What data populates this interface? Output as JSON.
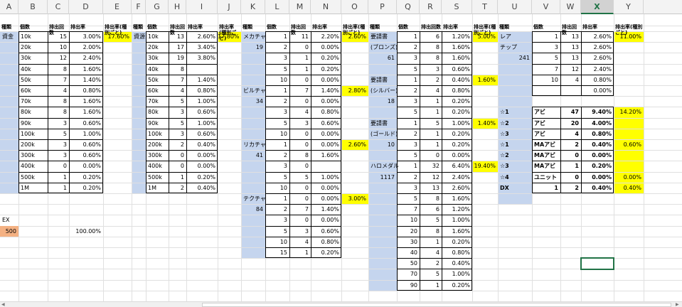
{
  "columns": [
    "A",
    "B",
    "C",
    "D",
    "E",
    "F",
    "G",
    "H",
    "I",
    "J",
    "K",
    "L",
    "M",
    "N",
    "O",
    "P",
    "Q",
    "R",
    "S",
    "T",
    "U",
    "V",
    "W",
    "X",
    "Y"
  ],
  "selected_column": "X",
  "headers": {
    "type": "種類",
    "count": "個数",
    "times": "排出回数",
    "rate": "排出率",
    "rate2": "排出率(種別ごと)"
  },
  "block1": {
    "category": "資金",
    "group_rate": "17.60%",
    "rows": [
      [
        "10k",
        "15",
        "3.00%"
      ],
      [
        "20k",
        "10",
        "2.00%"
      ],
      [
        "30k",
        "12",
        "2.40%"
      ],
      [
        "40k",
        "8",
        "1.60%"
      ],
      [
        "50k",
        "7",
        "1.40%"
      ],
      [
        "60k",
        "4",
        "0.80%"
      ],
      [
        "70k",
        "8",
        "1.60%"
      ],
      [
        "80k",
        "8",
        "1.60%"
      ],
      [
        "90k",
        "3",
        "0.60%"
      ],
      [
        "100k",
        "5",
        "1.00%"
      ],
      [
        "200k",
        "3",
        "0.60%"
      ],
      [
        "300k",
        "3",
        "0.60%"
      ],
      [
        "400k",
        "0",
        "0.00%"
      ],
      [
        "500k",
        "1",
        "0.20%"
      ],
      [
        "1M",
        "1",
        "0.20%"
      ]
    ]
  },
  "block2": {
    "category": "資源",
    "group_rate": "17.80%",
    "rows": [
      [
        "10k",
        "13",
        "2.60%"
      ],
      [
        "20k",
        "17",
        "3.40%"
      ],
      [
        "30k",
        "19",
        "3.80%"
      ],
      [
        "40k",
        "8",
        ""
      ],
      [
        "50k",
        "7",
        "1.40%"
      ],
      [
        "60k",
        "4",
        "0.80%"
      ],
      [
        "70k",
        "5",
        "1.00%"
      ],
      [
        "80k",
        "3",
        "0.60%"
      ],
      [
        "90k",
        "5",
        "1.00%"
      ],
      [
        "100k",
        "3",
        "0.60%"
      ],
      [
        "200k",
        "2",
        "0.40%"
      ],
      [
        "300k",
        "0",
        "0.00%"
      ],
      [
        "400k",
        "0",
        "0.00%"
      ],
      [
        "500k",
        "1",
        "0.20%"
      ],
      [
        "1M",
        "2",
        "0.40%"
      ]
    ]
  },
  "block3": {
    "groups": [
      {
        "name": "メカチャ",
        "total": "19",
        "rate": "2.60%",
        "rows": [
          [
            "1",
            "11",
            "2.20%"
          ],
          [
            "2",
            "0",
            "0.00%"
          ],
          [
            "3",
            "1",
            "0.20%"
          ],
          [
            "5",
            "1",
            "0.20%"
          ],
          [
            "10",
            "0",
            "0.00%"
          ]
        ]
      },
      {
        "name": "ビルチャ",
        "total": "34",
        "rate": "2.80%",
        "rows": [
          [
            "1",
            "7",
            "1.40%"
          ],
          [
            "2",
            "0",
            "0.00%"
          ],
          [
            "3",
            "4",
            "0.80%"
          ],
          [
            "5",
            "3",
            "0.60%"
          ],
          [
            "10",
            "0",
            "0.00%"
          ]
        ]
      },
      {
        "name": "リカチャ",
        "total": "41",
        "rate": "2.60%",
        "rows": [
          [
            "1",
            "0",
            "0.00%"
          ],
          [
            "2",
            "8",
            "1.60%"
          ],
          [
            "3",
            "0",
            ""
          ],
          [
            "5",
            "5",
            "1.00%"
          ],
          [
            "10",
            "0",
            "0.00%"
          ]
        ]
      },
      {
        "name": "テクチャ",
        "total": "84",
        "rate": "3.00%",
        "rows": [
          [
            "1",
            "0",
            "0.00%"
          ],
          [
            "2",
            "7",
            "1.40%"
          ],
          [
            "3",
            "0",
            "0.00%"
          ],
          [
            "5",
            "3",
            "0.60%"
          ],
          [
            "10",
            "4",
            "0.80%"
          ],
          [
            "15",
            "1",
            "0.20%"
          ]
        ]
      }
    ]
  },
  "block4": {
    "groups": [
      {
        "name1": "要請書",
        "name2": "(ブロンズ)",
        "total": "61",
        "rate": "5.00%",
        "rows": [
          [
            "1",
            "6",
            "1.20%"
          ],
          [
            "2",
            "8",
            "1.60%"
          ],
          [
            "3",
            "8",
            "1.60%"
          ],
          [
            "5",
            "3",
            "0.60%"
          ]
        ]
      },
      {
        "name1": "要請書",
        "name2": "(シルバー)",
        "total": "18",
        "rate": "1.60%",
        "rows": [
          [
            "1",
            "2",
            "0.40%"
          ],
          [
            "2",
            "4",
            "0.80%"
          ],
          [
            "3",
            "1",
            "0.20%"
          ],
          [
            "5",
            "1",
            "0.20%"
          ]
        ]
      },
      {
        "name1": "要請書",
        "name2": "(ゴールド)",
        "total": "10",
        "rate": "1.40%",
        "rows": [
          [
            "1",
            "5",
            "1.00%"
          ],
          [
            "2",
            "1",
            "0.20%"
          ],
          [
            "3",
            "1",
            "0.20%"
          ],
          [
            "5",
            "0",
            "0.00%"
          ]
        ]
      },
      {
        "name1": "ハロメダル",
        "name2": "",
        "total": "1117",
        "rate": "19.40%",
        "rows": [
          [
            "1",
            "32",
            "6.40%"
          ],
          [
            "2",
            "12",
            "2.40%"
          ],
          [
            "3",
            "13",
            "2.60%"
          ],
          [
            "5",
            "8",
            "1.60%"
          ],
          [
            "7",
            "6",
            "1.20%"
          ],
          [
            "10",
            "5",
            "1.00%"
          ],
          [
            "20",
            "8",
            "1.60%"
          ],
          [
            "30",
            "1",
            "0.20%"
          ],
          [
            "40",
            "4",
            "0.80%"
          ],
          [
            "50",
            "2",
            "0.40%"
          ],
          [
            "70",
            "5",
            "1.00%"
          ],
          [
            "90",
            "1",
            "0.20%"
          ]
        ]
      }
    ]
  },
  "block5": {
    "chip_name1": "レア",
    "chip_name2": "チップ",
    "chip_total": "241",
    "chip_rate": "11.00%",
    "chip_rows": [
      [
        "1",
        "13",
        "2.60%"
      ],
      [
        "3",
        "13",
        "2.60%"
      ],
      [
        "5",
        "13",
        "2.60%"
      ],
      [
        "7",
        "12",
        "2.40%"
      ],
      [
        "10",
        "4",
        "0.80%"
      ],
      [
        "",
        "",
        "0.00%"
      ]
    ],
    "special_rows": [
      [
        "☆1",
        "アビ",
        "47",
        "9.40%",
        "14.20%"
      ],
      [
        "☆2",
        "アビ",
        "20",
        "4.00%",
        ""
      ],
      [
        "☆3",
        "アビ",
        "4",
        "0.80%",
        ""
      ],
      [
        "☆1",
        "MAアビ",
        "2",
        "0.40%",
        "0.60%"
      ],
      [
        "☆2",
        "MAアビ",
        "0",
        "0.00%",
        ""
      ],
      [
        "☆3",
        "MAアビ",
        "1",
        "0.20%",
        ""
      ],
      [
        "☆4",
        "ユニット",
        "0",
        "0.00%",
        "0.00%"
      ],
      [
        "DX",
        "1",
        "2",
        "0.40%",
        "0.40%"
      ]
    ]
  },
  "ex": {
    "label": "EX",
    "value": "500",
    "rate": "100.00%"
  }
}
